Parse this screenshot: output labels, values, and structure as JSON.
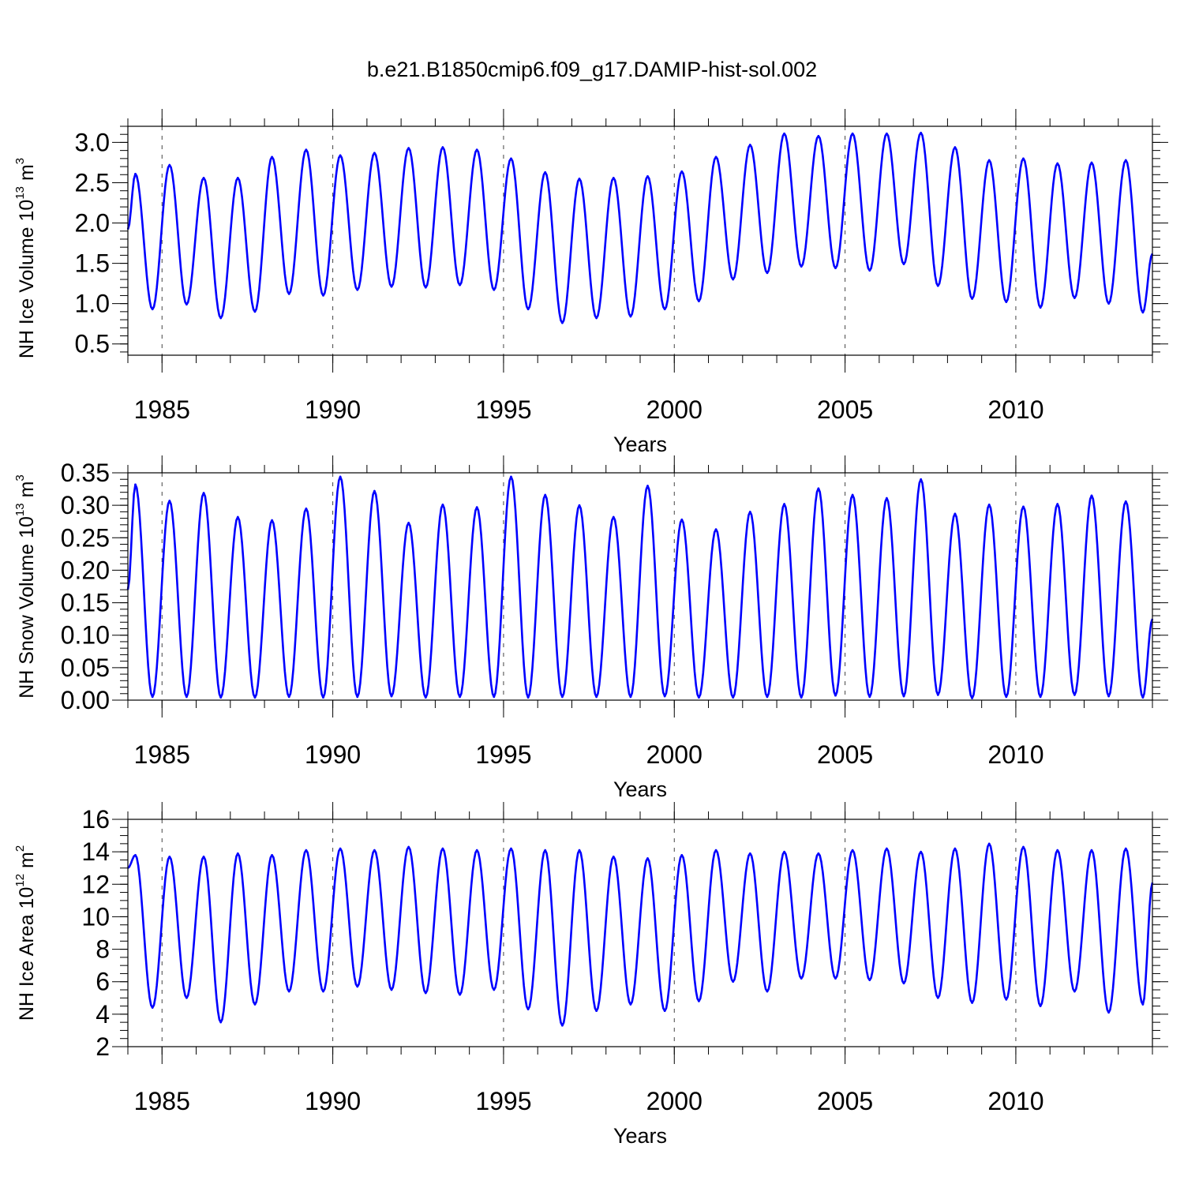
{
  "title": "b.e21.B1850cmip6.f09_g17.DAMIP-hist-sol.002",
  "chart_data": [
    {
      "type": "line",
      "name": "nh-ice-volume",
      "ylabel_main": "NH Ice Volume 10",
      "ylabel_exp": "13",
      "ylabel_unit": " m",
      "ylabel_unit_exp": "3",
      "xlabel": "Years",
      "xlim": [
        1984.0,
        2014.0
      ],
      "ylim": [
        0.36,
        3.2
      ],
      "xticks": [
        1985,
        1990,
        1995,
        2000,
        2005,
        2010
      ],
      "yticks": [
        0.5,
        1.0,
        1.5,
        2.0,
        2.5,
        3.0
      ],
      "ytick_labels": [
        "0.5",
        "1.0",
        "1.5",
        "2.0",
        "2.5",
        "3.0"
      ],
      "yminor": 0.1,
      "start": 1.92,
      "end": 1.62,
      "series": [
        {
          "name": "Ice Volume",
          "color": "#0000ff",
          "cycles": [
            {
              "max": 2.61,
              "min": 0.93
            },
            {
              "max": 2.72,
              "min": 0.99
            },
            {
              "max": 2.56,
              "min": 0.82
            },
            {
              "max": 2.56,
              "min": 0.9
            },
            {
              "max": 2.82,
              "min": 1.12
            },
            {
              "max": 2.91,
              "min": 1.1
            },
            {
              "max": 2.84,
              "min": 1.17
            },
            {
              "max": 2.87,
              "min": 1.21
            },
            {
              "max": 2.93,
              "min": 1.2
            },
            {
              "max": 2.94,
              "min": 1.23
            },
            {
              "max": 2.91,
              "min": 1.17
            },
            {
              "max": 2.8,
              "min": 0.93
            },
            {
              "max": 2.63,
              "min": 0.76
            },
            {
              "max": 2.55,
              "min": 0.82
            },
            {
              "max": 2.56,
              "min": 0.84
            },
            {
              "max": 2.58,
              "min": 0.93
            },
            {
              "max": 2.64,
              "min": 1.03
            },
            {
              "max": 2.82,
              "min": 1.3
            },
            {
              "max": 2.97,
              "min": 1.38
            },
            {
              "max": 3.11,
              "min": 1.46
            },
            {
              "max": 3.08,
              "min": 1.44
            },
            {
              "max": 3.11,
              "min": 1.41
            },
            {
              "max": 3.11,
              "min": 1.49
            },
            {
              "max": 3.12,
              "min": 1.22
            },
            {
              "max": 2.94,
              "min": 1.06
            },
            {
              "max": 2.78,
              "min": 1.02
            },
            {
              "max": 2.8,
              "min": 0.95
            },
            {
              "max": 2.74,
              "min": 1.07
            },
            {
              "max": 2.75,
              "min": 1.0
            },
            {
              "max": 2.78,
              "min": 0.89
            }
          ]
        }
      ]
    },
    {
      "type": "line",
      "name": "nh-snow-volume",
      "ylabel_main": "NH Snow Volume 10",
      "ylabel_exp": "13",
      "ylabel_unit": " m",
      "ylabel_unit_exp": "3",
      "xlabel": "Years",
      "xlim": [
        1984.0,
        2014.0
      ],
      "ylim": [
        0.0,
        0.35
      ],
      "xticks": [
        1985,
        1990,
        1995,
        2000,
        2005,
        2010
      ],
      "yticks": [
        0.0,
        0.05,
        0.1,
        0.15,
        0.2,
        0.25,
        0.3,
        0.35
      ],
      "ytick_labels": [
        "0.00",
        "0.05",
        "0.10",
        "0.15",
        "0.20",
        "0.25",
        "0.30",
        "0.35"
      ],
      "yminor": 0.01,
      "start": 0.17,
      "end": 0.125,
      "series": [
        {
          "name": "Snow Volume",
          "color": "#0000ff",
          "cycles": [
            {
              "max": 0.332,
              "min": 0.005
            },
            {
              "max": 0.307,
              "min": 0.005
            },
            {
              "max": 0.319,
              "min": 0.004
            },
            {
              "max": 0.282,
              "min": 0.004
            },
            {
              "max": 0.277,
              "min": 0.005
            },
            {
              "max": 0.295,
              "min": 0.004
            },
            {
              "max": 0.344,
              "min": 0.005
            },
            {
              "max": 0.322,
              "min": 0.006
            },
            {
              "max": 0.273,
              "min": 0.004
            },
            {
              "max": 0.301,
              "min": 0.005
            },
            {
              "max": 0.297,
              "min": 0.005
            },
            {
              "max": 0.344,
              "min": 0.004
            },
            {
              "max": 0.316,
              "min": 0.005
            },
            {
              "max": 0.3,
              "min": 0.005
            },
            {
              "max": 0.282,
              "min": 0.005
            },
            {
              "max": 0.33,
              "min": 0.006
            },
            {
              "max": 0.278,
              "min": 0.004
            },
            {
              "max": 0.263,
              "min": 0.004
            },
            {
              "max": 0.29,
              "min": 0.005
            },
            {
              "max": 0.302,
              "min": 0.004
            },
            {
              "max": 0.326,
              "min": 0.007
            },
            {
              "max": 0.316,
              "min": 0.005
            },
            {
              "max": 0.311,
              "min": 0.006
            },
            {
              "max": 0.34,
              "min": 0.008
            },
            {
              "max": 0.287,
              "min": 0.003
            },
            {
              "max": 0.301,
              "min": 0.005
            },
            {
              "max": 0.298,
              "min": 0.005
            },
            {
              "max": 0.302,
              "min": 0.008
            },
            {
              "max": 0.315,
              "min": 0.006
            },
            {
              "max": 0.306,
              "min": 0.004
            }
          ]
        }
      ]
    },
    {
      "type": "line",
      "name": "nh-ice-area",
      "ylabel_main": "NH Ice Area 10",
      "ylabel_exp": "12",
      "ylabel_unit": " m",
      "ylabel_unit_exp": "2",
      "xlabel": "Years",
      "xlim": [
        1984.0,
        2014.0
      ],
      "ylim": [
        2.0,
        16.0
      ],
      "xticks": [
        1985,
        1990,
        1995,
        2000,
        2005,
        2010
      ],
      "yticks": [
        2,
        4,
        6,
        8,
        10,
        12,
        14,
        16
      ],
      "ytick_labels": [
        "2",
        "4",
        "6",
        "8",
        "10",
        "12",
        "14",
        "16"
      ],
      "yminor": 0.5,
      "start": 13.0,
      "end": 12.1,
      "series": [
        {
          "name": "Ice Area",
          "color": "#0000ff",
          "cycles": [
            {
              "max": 13.8,
              "min": 4.4
            },
            {
              "max": 13.7,
              "min": 5.0
            },
            {
              "max": 13.7,
              "min": 3.5
            },
            {
              "max": 13.9,
              "min": 4.6
            },
            {
              "max": 13.8,
              "min": 5.4
            },
            {
              "max": 14.1,
              "min": 5.4
            },
            {
              "max": 14.2,
              "min": 5.7
            },
            {
              "max": 14.1,
              "min": 5.5
            },
            {
              "max": 14.3,
              "min": 5.3
            },
            {
              "max": 14.2,
              "min": 5.2
            },
            {
              "max": 14.1,
              "min": 5.5
            },
            {
              "max": 14.2,
              "min": 4.3
            },
            {
              "max": 14.1,
              "min": 3.3
            },
            {
              "max": 14.1,
              "min": 4.2
            },
            {
              "max": 13.7,
              "min": 4.6
            },
            {
              "max": 13.6,
              "min": 4.2
            },
            {
              "max": 13.8,
              "min": 4.8
            },
            {
              "max": 14.1,
              "min": 6.0
            },
            {
              "max": 13.9,
              "min": 5.4
            },
            {
              "max": 14.0,
              "min": 6.2
            },
            {
              "max": 13.9,
              "min": 6.2
            },
            {
              "max": 14.1,
              "min": 6.1
            },
            {
              "max": 14.2,
              "min": 5.9
            },
            {
              "max": 14.0,
              "min": 5.0
            },
            {
              "max": 14.2,
              "min": 4.7
            },
            {
              "max": 14.5,
              "min": 4.9
            },
            {
              "max": 14.3,
              "min": 4.5
            },
            {
              "max": 14.1,
              "min": 5.4
            },
            {
              "max": 14.1,
              "min": 4.1
            },
            {
              "max": 14.2,
              "min": 4.6
            }
          ]
        }
      ]
    }
  ]
}
